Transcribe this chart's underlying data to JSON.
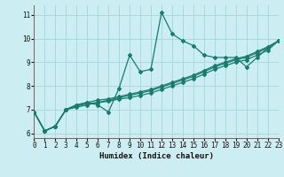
{
  "xlabel": "Humidex (Indice chaleur)",
  "bg_color": "#cceef2",
  "grid_color": "#aad8dc",
  "line_color": "#1a7a6e",
  "xlim": [
    0,
    23
  ],
  "ylim": [
    5.8,
    11.4
  ],
  "xticks": [
    0,
    1,
    2,
    3,
    4,
    5,
    6,
    7,
    8,
    9,
    10,
    11,
    12,
    13,
    14,
    15,
    16,
    17,
    18,
    19,
    20,
    21,
    22,
    23
  ],
  "yticks": [
    6,
    7,
    8,
    9,
    10,
    11
  ],
  "series": [
    [
      6.9,
      6.1,
      6.3,
      7.0,
      7.2,
      7.3,
      7.2,
      6.9,
      7.9,
      9.3,
      8.6,
      8.7,
      11.1,
      10.2,
      9.9,
      9.7,
      9.3,
      9.2,
      9.2,
      9.2,
      8.8,
      9.2,
      9.6,
      9.9
    ],
    [
      6.9,
      6.1,
      6.3,
      7.0,
      7.15,
      7.25,
      7.3,
      7.35,
      7.45,
      7.5,
      7.6,
      7.7,
      7.85,
      8.0,
      8.15,
      8.3,
      8.5,
      8.7,
      8.85,
      9.0,
      9.1,
      9.3,
      9.5,
      9.9
    ],
    [
      6.9,
      6.1,
      6.3,
      7.0,
      7.1,
      7.2,
      7.3,
      7.4,
      7.5,
      7.6,
      7.7,
      7.8,
      7.95,
      8.1,
      8.25,
      8.4,
      8.6,
      8.8,
      8.95,
      9.1,
      9.2,
      9.4,
      9.6,
      9.9
    ],
    [
      6.9,
      6.1,
      6.3,
      7.0,
      7.2,
      7.3,
      7.4,
      7.45,
      7.55,
      7.65,
      7.75,
      7.85,
      8.0,
      8.15,
      8.3,
      8.45,
      8.65,
      8.85,
      9.0,
      9.15,
      9.25,
      9.45,
      9.65,
      9.9
    ]
  ]
}
